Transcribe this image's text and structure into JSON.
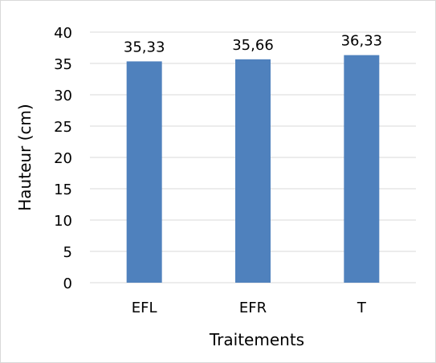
{
  "chart_data": {
    "type": "bar",
    "categories": [
      "EFL",
      "EFR",
      "T"
    ],
    "values": [
      35.33,
      35.66,
      36.33
    ],
    "value_labels": [
      "35,33",
      "35,66",
      "36,33"
    ],
    "title": "",
    "xlabel": "Traitements",
    "ylabel": "Hauteur (cm)",
    "ylim": [
      0,
      40
    ],
    "yticks": [
      "0",
      "5",
      "10",
      "15",
      "20",
      "25",
      "30",
      "35",
      "40"
    ],
    "grid": true,
    "legend": "none",
    "bar_color": "#4f81bd",
    "grid_color": "#d9d9d9"
  }
}
